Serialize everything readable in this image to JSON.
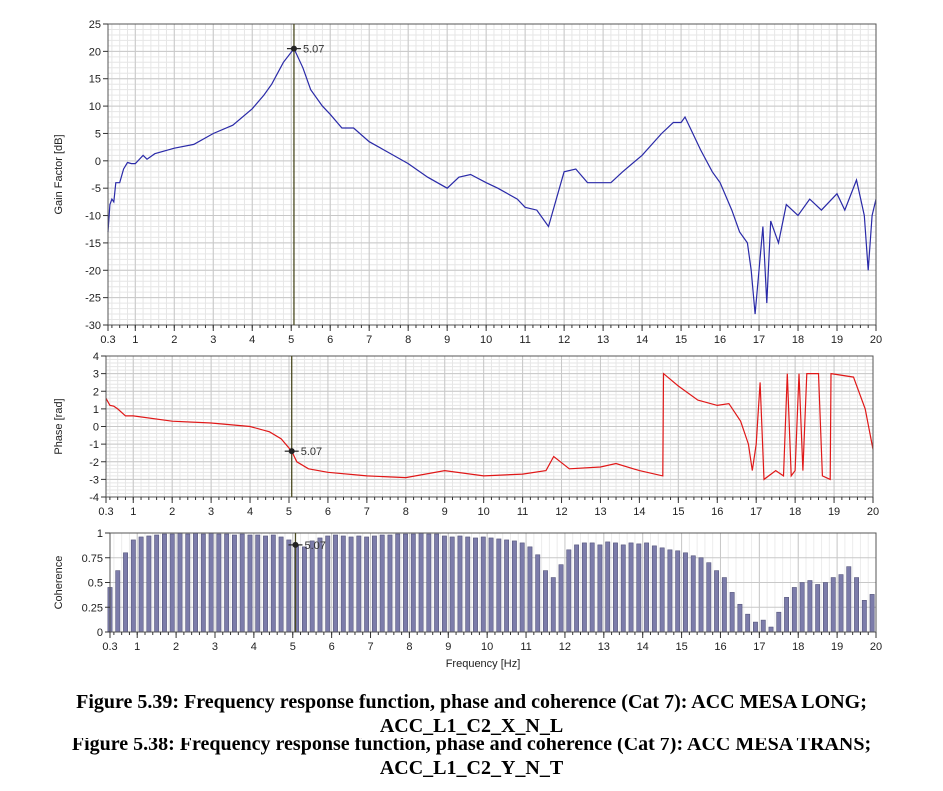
{
  "cursor": {
    "frequency": 5.07,
    "label": "5.07"
  },
  "xlabel": "Frequency [Hz]",
  "xticks": [
    "0.3",
    "1",
    "2",
    "3",
    "4",
    "5",
    "6",
    "7",
    "8",
    "9",
    "10",
    "11",
    "12",
    "13",
    "14",
    "15",
    "16",
    "17",
    "18",
    "19",
    "20"
  ],
  "colors": {
    "gain": "#2a2aa8",
    "phase": "#e01818",
    "coherence": "#7c7caa",
    "cursor": "#4a4a20",
    "grid": "#d4d4d4"
  },
  "chart_data": [
    {
      "type": "line",
      "title": "",
      "xlabel": "Frequency [Hz]",
      "ylabel": "Gain Factor [dB]",
      "xlim": [
        0.3,
        20
      ],
      "ylim": [
        -30,
        25
      ],
      "yticks": [
        "25",
        "20",
        "15",
        "10",
        "5",
        "0",
        "-5",
        "-10",
        "-15",
        "-20",
        "-25",
        "-30"
      ],
      "grid": true,
      "series": [
        {
          "name": "Gain",
          "x": [
            0.3,
            0.35,
            0.4,
            0.45,
            0.5,
            0.6,
            0.7,
            0.8,
            0.9,
            1,
            1.2,
            1.3,
            1.5,
            2,
            2.5,
            3,
            3.5,
            4,
            4.3,
            4.5,
            4.8,
            5.07,
            5.3,
            5.5,
            5.8,
            6,
            6.3,
            6.6,
            7,
            7.5,
            8,
            8.5,
            9,
            9.3,
            9.6,
            10,
            10.3,
            10.8,
            11,
            11.3,
            11.6,
            11.8,
            12,
            12.3,
            12.6,
            13.2,
            13.5,
            14,
            14.5,
            14.8,
            15,
            15.1,
            15.5,
            15.8,
            16,
            16.3,
            16.5,
            16.7,
            16.8,
            16.9,
            17,
            17.1,
            17.2,
            17.3,
            17.5,
            17.7,
            18,
            18.3,
            18.6,
            19,
            19.2,
            19.5,
            19.7,
            19.8,
            19.9,
            20
          ],
          "y": [
            -13,
            -8,
            -7,
            -7.5,
            -4,
            -4,
            -1.5,
            -0.3,
            -0.5,
            -0.5,
            1,
            0.3,
            1.3,
            2.3,
            3,
            5,
            6.5,
            9.5,
            12,
            14,
            18,
            20.5,
            17,
            13,
            10,
            8.5,
            6,
            6,
            3.5,
            1.5,
            -0.5,
            -3,
            -5,
            -3,
            -2.5,
            -4,
            -5,
            -7,
            -8.5,
            -9,
            -12,
            -7,
            -2,
            -1.5,
            -4,
            -4,
            -2,
            1,
            5,
            7,
            7,
            8,
            2,
            -2,
            -4,
            -9,
            -13,
            -15,
            -20,
            -28,
            -20,
            -12,
            -26,
            -11,
            -15,
            -8,
            -10,
            -7,
            -9,
            -6,
            -9,
            -3.5,
            -10,
            -20,
            -10,
            -7
          ]
        }
      ]
    },
    {
      "type": "line",
      "title": "",
      "xlabel": "",
      "ylabel": "Phase [rad]",
      "xlim": [
        0.3,
        20
      ],
      "ylim": [
        -4,
        4
      ],
      "yticks": [
        "4",
        "3",
        "2",
        "1",
        "0",
        "-1",
        "-2",
        "-3",
        "-4"
      ],
      "grid": true,
      "series": [
        {
          "name": "Phase",
          "x": [
            0.3,
            0.4,
            0.5,
            0.6,
            0.8,
            1,
            2,
            3,
            4,
            4.5,
            4.8,
            5.07,
            5.2,
            5.5,
            6,
            7,
            8,
            9,
            10,
            11,
            11.6,
            11.8,
            12.2,
            13,
            13.4,
            14,
            14.6,
            14.62,
            15,
            15.5,
            16,
            16.3,
            16.6,
            16.8,
            16.9,
            17,
            17.1,
            17.2,
            17.5,
            17.7,
            17.8,
            17.9,
            18,
            18.1,
            18.2,
            18.3,
            18.6,
            18.7,
            18.9,
            18.92,
            19.5,
            19.8,
            20
          ],
          "y": [
            1.6,
            1.2,
            1.15,
            1.0,
            0.6,
            0.6,
            0.3,
            0.2,
            0,
            -0.3,
            -0.7,
            -1.4,
            -2,
            -2.4,
            -2.6,
            -2.8,
            -2.9,
            -2.5,
            -2.8,
            -2.7,
            -2.5,
            -1.7,
            -2.4,
            -2.3,
            -2.1,
            -2.5,
            -2.8,
            3,
            2.3,
            1.5,
            1.2,
            1.3,
            0.3,
            -1,
            -2.5,
            -1,
            2.5,
            -3,
            -2.5,
            -2.8,
            3,
            -2.8,
            -2.5,
            3,
            -2.5,
            3,
            3,
            -2.8,
            -3,
            3,
            2.8,
            1,
            -1.3
          ]
        }
      ]
    },
    {
      "type": "bar",
      "title": "",
      "xlabel": "Frequency [Hz]",
      "ylabel": "Coherence",
      "xlim": [
        0.3,
        20
      ],
      "ylim": [
        0,
        1
      ],
      "yticks": [
        "1",
        "0.75",
        "0.5",
        "0.25",
        "0"
      ],
      "grid": true,
      "series": [
        {
          "name": "Coherence",
          "x_start": 0.3,
          "x_step": 0.2,
          "values": [
            0.45,
            0.62,
            0.8,
            0.93,
            0.96,
            0.97,
            0.98,
            0.99,
            0.99,
            1.0,
            0.99,
            1.0,
            0.99,
            1.0,
            0.99,
            0.99,
            0.98,
            0.99,
            0.98,
            0.98,
            0.97,
            0.98,
            0.96,
            0.93,
            0.88,
            0.86,
            0.92,
            0.95,
            0.97,
            0.98,
            0.97,
            0.96,
            0.97,
            0.96,
            0.97,
            0.98,
            0.98,
            0.99,
            0.99,
            0.99,
            1.0,
            0.99,
            0.99,
            0.97,
            0.96,
            0.97,
            0.96,
            0.95,
            0.96,
            0.95,
            0.94,
            0.93,
            0.92,
            0.9,
            0.86,
            0.78,
            0.62,
            0.55,
            0.68,
            0.83,
            0.88,
            0.9,
            0.9,
            0.88,
            0.91,
            0.9,
            0.88,
            0.9,
            0.89,
            0.9,
            0.87,
            0.85,
            0.83,
            0.82,
            0.8,
            0.77,
            0.75,
            0.7,
            0.62,
            0.55,
            0.4,
            0.28,
            0.18,
            0.1,
            0.12,
            0.05,
            0.2,
            0.35,
            0.45,
            0.5,
            0.52,
            0.48,
            0.5,
            0.55,
            0.58,
            0.66,
            0.55,
            0.32,
            0.38
          ]
        }
      ]
    }
  ],
  "caption": {
    "line1": "Figure 5.39: Frequency response function, phase and coherence (Cat 7): ACC MESA LONG;",
    "line2": "ACC_L1_C2_X_N_L",
    "line3": "Figure 5.38: Frequency response function, phase and coherence (Cat 7): ACC MESA TRANS;",
    "line4": "ACC_L1_C2_Y_N_T"
  }
}
